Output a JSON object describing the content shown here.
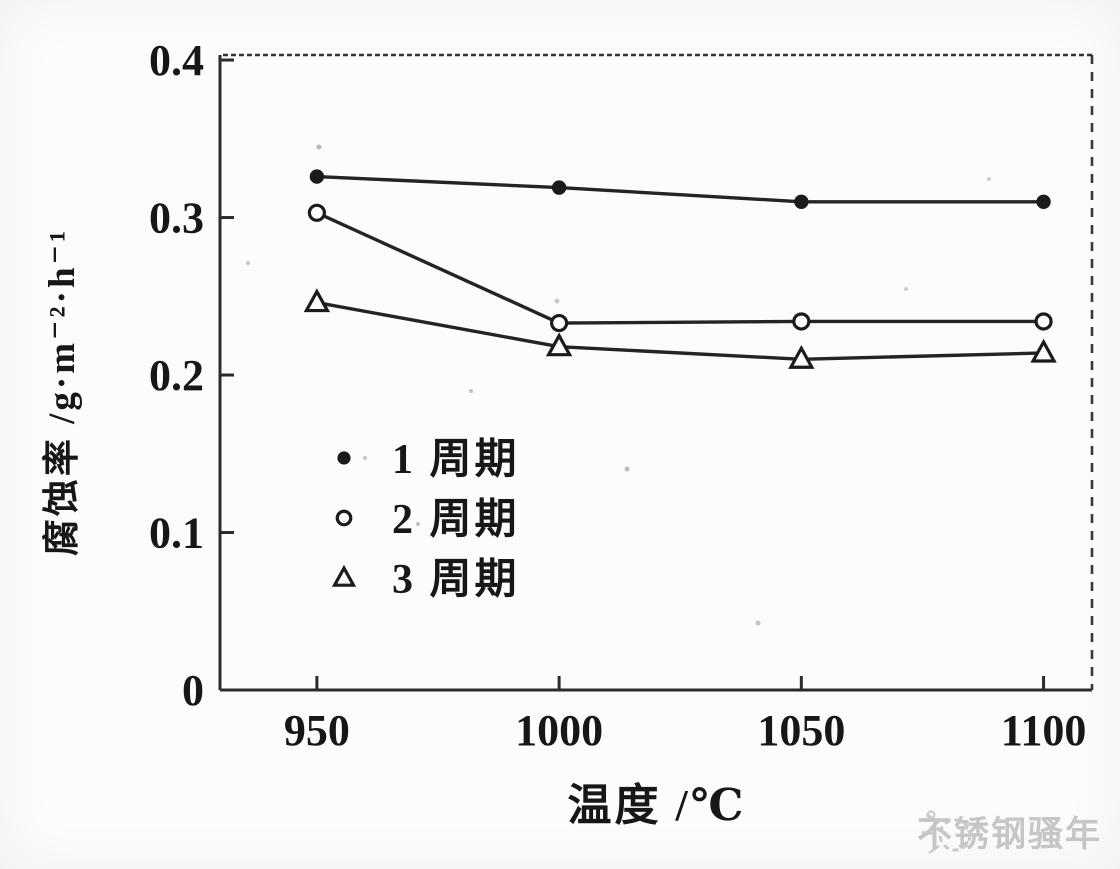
{
  "chart_data": {
    "type": "line",
    "title": "",
    "xlabel": "温度 /℃",
    "ylabel": "腐蚀率 /g·m⁻²·h⁻¹",
    "x": [
      950,
      1000,
      1050,
      1100
    ],
    "xticks": [
      950,
      1000,
      1050,
      1100
    ],
    "yticks": [
      0,
      0.1,
      0.2,
      0.3,
      0.4
    ],
    "ytick_labels": [
      "0",
      "0.1",
      "0.2",
      "0.3",
      "0.4"
    ],
    "xlim": [
      930,
      1110
    ],
    "ylim": [
      0,
      0.4032
    ],
    "grid": false,
    "legend_position": "inside lower-left",
    "series": [
      {
        "name": "1 周期",
        "marker": "filled-circle",
        "values": [
          0.326,
          0.319,
          0.31,
          0.31
        ]
      },
      {
        "name": "2 周期",
        "marker": "open-circle",
        "values": [
          0.303,
          0.233,
          0.234,
          0.234
        ]
      },
      {
        "name": "3 周期",
        "marker": "open-triangle",
        "values": [
          0.246,
          0.218,
          0.21,
          0.214
        ]
      }
    ]
  },
  "watermark": {
    "text": "不锈钢骚年"
  },
  "colors": {
    "ink": "#1b1b1b",
    "text": "#171717",
    "watermark": "#c6c6c6",
    "background": "#fcfcfb"
  }
}
